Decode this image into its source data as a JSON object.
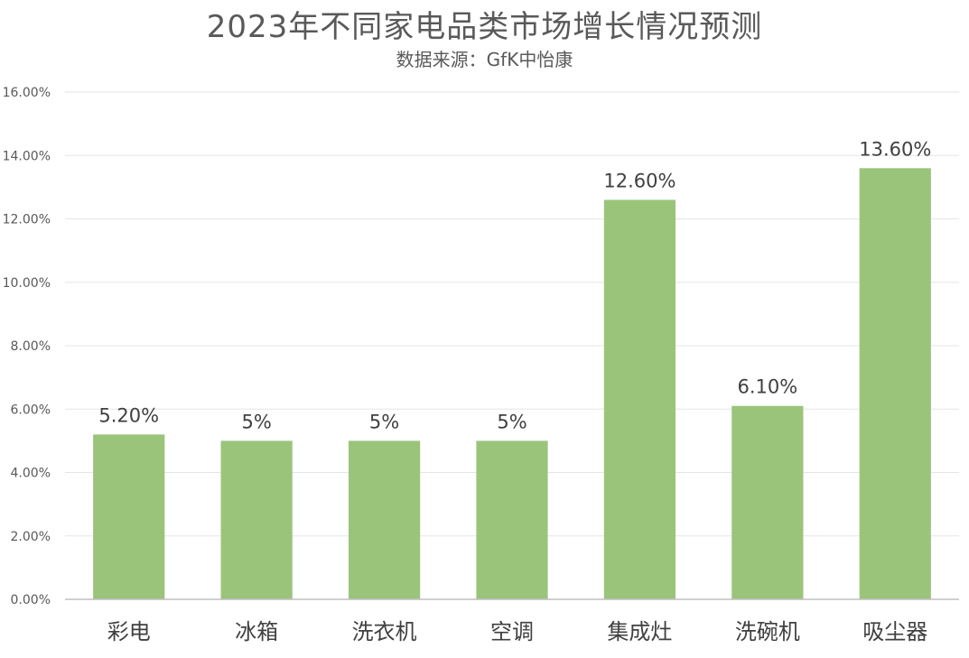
{
  "chart_data": {
    "type": "bar",
    "title": "2023年不同家电品类市场增长情况预测",
    "subtitle": "数据来源：GfK中怡康",
    "categories": [
      "彩电",
      "冰箱",
      "洗衣机",
      "空调",
      "集成灶",
      "洗碗机",
      "吸尘器"
    ],
    "values": [
      5.2,
      5.0,
      5.0,
      5.0,
      12.6,
      6.1,
      13.6
    ],
    "data_labels": [
      "5.20%",
      "5%",
      "5%",
      "5%",
      "12.60%",
      "6.10%",
      "13.60%"
    ],
    "y_ticks": [
      "0.00%",
      "2.00%",
      "4.00%",
      "6.00%",
      "8.00%",
      "10.00%",
      "12.00%",
      "14.00%",
      "16.00%"
    ],
    "ylim": [
      0,
      16
    ],
    "y_unit": "%",
    "grid": true,
    "legend": "none",
    "bar_color": "#9bc47b"
  }
}
